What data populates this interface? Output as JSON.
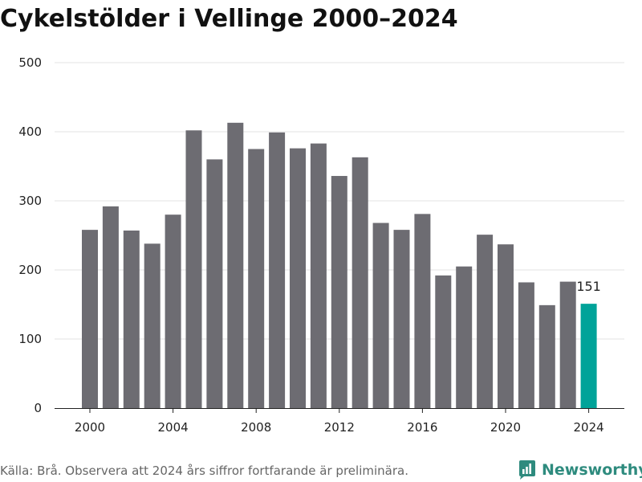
{
  "chart_data": {
    "type": "bar",
    "title": "Cykelstölder i Vellinge 2000–2024",
    "x": [
      2000,
      2001,
      2002,
      2003,
      2004,
      2005,
      2006,
      2007,
      2008,
      2009,
      2010,
      2011,
      2012,
      2013,
      2014,
      2015,
      2016,
      2017,
      2018,
      2019,
      2020,
      2021,
      2022,
      2023,
      2024
    ],
    "values": [
      258,
      292,
      257,
      238,
      280,
      402,
      360,
      413,
      375,
      399,
      376,
      383,
      336,
      363,
      268,
      258,
      281,
      192,
      205,
      251,
      237,
      182,
      149,
      183,
      151
    ],
    "highlight": {
      "x": 2024,
      "label": "151"
    },
    "xticks": [
      "2000",
      "2004",
      "2008",
      "2012",
      "2016",
      "2020",
      "2024"
    ],
    "yticks": [
      "0",
      "100",
      "200",
      "300",
      "400",
      "500"
    ],
    "ylim": [
      0,
      500
    ],
    "grid": true,
    "colors": {
      "bar": "#6d6c72",
      "highlight": "#00a399",
      "grid": "#e3e3e3",
      "axis": "#222222"
    }
  },
  "footer": {
    "source": "Källa: Brå. Observera att 2024 års siffror fortfarande är preliminära."
  },
  "logo": {
    "text": "Newsworthy",
    "icon": "bar-chart-logo-icon",
    "color": "#2e8b7e"
  }
}
